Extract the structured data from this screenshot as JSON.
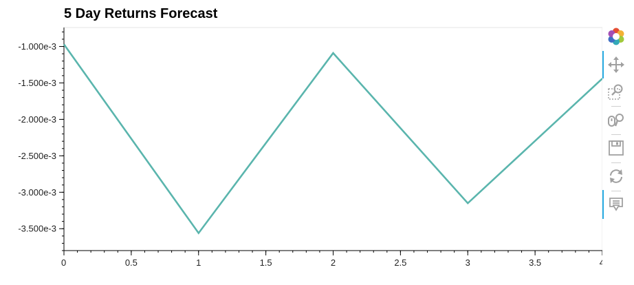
{
  "chart_data": {
    "type": "line",
    "title": "5 Day Returns Forecast",
    "xlabel": "",
    "ylabel": "",
    "xlim": [
      0,
      4
    ],
    "ylim": [
      -0.0038,
      -0.00074
    ],
    "x_ticks": [
      0,
      0.5,
      1,
      1.5,
      2,
      2.5,
      3,
      3.5,
      4
    ],
    "x_tick_labels": [
      "0",
      "0.5",
      "1",
      "1.5",
      "2",
      "2.5",
      "3",
      "3.5",
      "4"
    ],
    "y_ticks": [
      -0.001,
      -0.0015,
      -0.002,
      -0.0025,
      -0.003,
      -0.0035
    ],
    "y_tick_labels": [
      "-1.000e-3",
      "-1.500e-3",
      "-2.000e-3",
      "-2.500e-3",
      "-3.000e-3",
      "-3.500e-3"
    ],
    "grid": false,
    "series": [
      {
        "x": [
          0,
          1,
          2,
          3,
          4
        ],
        "values": [
          -0.00097,
          -0.00356,
          -0.00109,
          -0.00315,
          -0.00144
        ],
        "color": "#5ab5ad"
      }
    ]
  },
  "toolbar": {
    "tools": [
      "bokeh-logo-icon",
      "pan-icon",
      "box-zoom-icon",
      "wheel-zoom-icon",
      "save-icon",
      "reset-icon",
      "hover-icon"
    ],
    "active_color": "#26aae1"
  }
}
